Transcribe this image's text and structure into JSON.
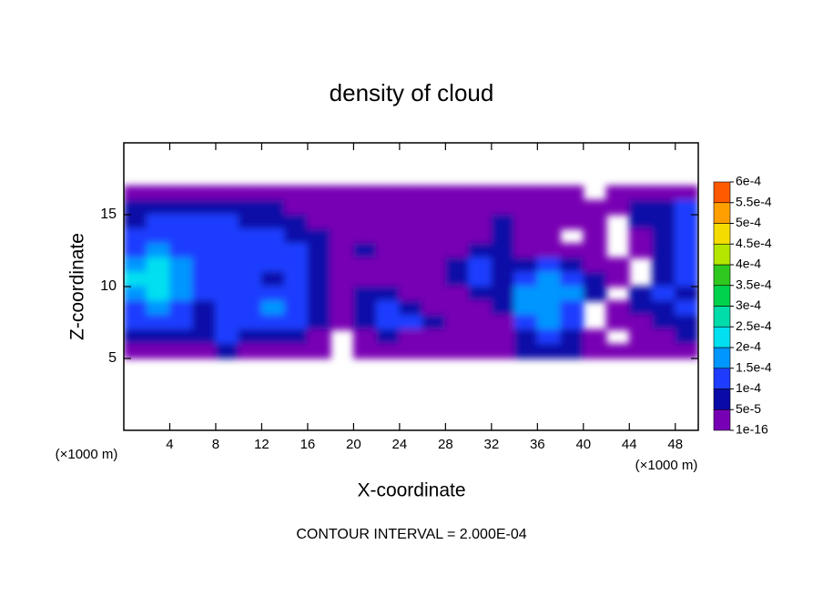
{
  "chart_data": {
    "type": "contour",
    "title": "density of cloud",
    "xlabel": "X-coordinate",
    "ylabel": "Z-coordinate",
    "x_unit_label": "(×1000 m)",
    "z_unit_label": "(×1000 m)",
    "footnote": "CONTOUR INTERVAL = 2.000E-04",
    "xlim": [
      0,
      50
    ],
    "ylim": [
      0,
      20
    ],
    "xticks": [
      4,
      8,
      12,
      16,
      20,
      24,
      28,
      32,
      36,
      40,
      44,
      48
    ],
    "yticks": [
      5,
      10,
      15
    ],
    "x": [
      1,
      3,
      5,
      7,
      9,
      11,
      13,
      15,
      17,
      19,
      21,
      23,
      25,
      27,
      29,
      31,
      33,
      35,
      37,
      39,
      41,
      43,
      45,
      47,
      49
    ],
    "y": [
      16.5,
      15.5,
      14.5,
      13.5,
      12.5,
      11.5,
      10.5,
      9.5,
      8.5,
      7.5,
      6.5,
      5.5
    ],
    "z": [
      [
        2e-05,
        2e-05,
        2e-05,
        2e-05,
        2e-05,
        2e-05,
        2e-05,
        2e-05,
        2e-05,
        2e-05,
        2e-05,
        2e-05,
        2e-05,
        2e-05,
        2e-05,
        2e-05,
        2e-05,
        2e-05,
        2e-05,
        2e-05,
        null,
        2e-05,
        2e-05,
        2e-05,
        2e-05
      ],
      [
        7e-05,
        7e-05,
        7e-05,
        7e-05,
        7e-05,
        7e-05,
        7e-05,
        2e-05,
        2e-05,
        2e-05,
        2e-05,
        2e-05,
        2e-05,
        2e-05,
        2e-05,
        2e-05,
        2e-05,
        2e-05,
        2e-05,
        2e-05,
        2e-05,
        2e-05,
        7e-05,
        7e-05,
        0.00012
      ],
      [
        7e-05,
        0.00012,
        0.00012,
        0.00012,
        0.00012,
        7e-05,
        7e-05,
        7e-05,
        2e-05,
        2e-05,
        2e-05,
        2e-05,
        2e-05,
        2e-05,
        2e-05,
        2e-05,
        7e-05,
        2e-05,
        2e-05,
        2e-05,
        2e-05,
        null,
        7e-05,
        7e-05,
        0.00012
      ],
      [
        0.00012,
        0.00012,
        0.00012,
        0.00012,
        0.00012,
        0.00012,
        0.00012,
        7e-05,
        7e-05,
        2e-05,
        2e-05,
        2e-05,
        2e-05,
        2e-05,
        2e-05,
        2e-05,
        7e-05,
        2e-05,
        2e-05,
        null,
        2e-05,
        null,
        2e-05,
        7e-05,
        0.00012
      ],
      [
        0.00012,
        0.00017,
        0.00012,
        0.00012,
        0.00012,
        0.00012,
        0.00012,
        0.00012,
        7e-05,
        2e-05,
        7e-05,
        2e-05,
        2e-05,
        2e-05,
        2e-05,
        7e-05,
        7e-05,
        2e-05,
        2e-05,
        2e-05,
        2e-05,
        null,
        2e-05,
        7e-05,
        0.00012
      ],
      [
        0.00017,
        0.00021,
        0.00017,
        0.00012,
        0.00012,
        0.00012,
        0.00012,
        0.00012,
        7e-05,
        2e-05,
        2e-05,
        2e-05,
        2e-05,
        2e-05,
        7e-05,
        0.00012,
        7e-05,
        7e-05,
        0.00012,
        7e-05,
        2e-05,
        2e-05,
        null,
        7e-05,
        0.00012
      ],
      [
        0.00021,
        0.00021,
        0.00017,
        0.00012,
        0.00012,
        0.00012,
        7e-05,
        0.00012,
        7e-05,
        2e-05,
        2e-05,
        2e-05,
        2e-05,
        2e-05,
        7e-05,
        0.00012,
        7e-05,
        0.00012,
        0.00017,
        0.00012,
        7e-05,
        2e-05,
        null,
        7e-05,
        0.00012
      ],
      [
        0.00017,
        0.00021,
        0.00017,
        0.00012,
        0.00012,
        0.00012,
        0.00012,
        0.00012,
        7e-05,
        2e-05,
        7e-05,
        7e-05,
        2e-05,
        2e-05,
        2e-05,
        7e-05,
        7e-05,
        0.00017,
        0.00017,
        0.00017,
        7e-05,
        null,
        7e-05,
        0.00012,
        7e-05
      ],
      [
        0.00012,
        0.00017,
        0.00012,
        7e-05,
        0.00012,
        0.00012,
        0.00017,
        0.00012,
        7e-05,
        2e-05,
        7e-05,
        0.00012,
        7e-05,
        2e-05,
        2e-05,
        2e-05,
        7e-05,
        0.00017,
        0.00017,
        0.00012,
        null,
        2e-05,
        7e-05,
        7e-05,
        0.00012
      ],
      [
        0.00012,
        0.00012,
        0.00012,
        7e-05,
        0.00012,
        0.00012,
        0.00012,
        0.00012,
        7e-05,
        2e-05,
        7e-05,
        0.00012,
        0.00012,
        7e-05,
        2e-05,
        2e-05,
        2e-05,
        0.00012,
        0.00017,
        0.00012,
        null,
        2e-05,
        2e-05,
        7e-05,
        7e-05
      ],
      [
        7e-05,
        7e-05,
        7e-05,
        7e-05,
        0.00012,
        7e-05,
        7e-05,
        7e-05,
        2e-05,
        null,
        2e-05,
        7e-05,
        2e-05,
        2e-05,
        2e-05,
        2e-05,
        2e-05,
        7e-05,
        0.00012,
        7e-05,
        2e-05,
        null,
        2e-05,
        2e-05,
        7e-05
      ],
      [
        2e-05,
        2e-05,
        2e-05,
        2e-05,
        7e-05,
        2e-05,
        2e-05,
        2e-05,
        2e-05,
        null,
        2e-05,
        2e-05,
        2e-05,
        2e-05,
        2e-05,
        2e-05,
        2e-05,
        7e-05,
        7e-05,
        7e-05,
        2e-05,
        2e-05,
        2e-05,
        2e-05,
        2e-05
      ]
    ],
    "levels": [
      {
        "value": 1e-16,
        "label": "1e-16"
      },
      {
        "value": 5e-05,
        "label": "5e-5"
      },
      {
        "value": 0.0001,
        "label": "1e-4"
      },
      {
        "value": 0.00015,
        "label": "1.5e-4"
      },
      {
        "value": 0.0002,
        "label": "2e-4"
      },
      {
        "value": 0.00025,
        "label": "2.5e-4"
      },
      {
        "value": 0.0003,
        "label": "3e-4"
      },
      {
        "value": 0.00035,
        "label": "3.5e-4"
      },
      {
        "value": 0.0004,
        "label": "4e-4"
      },
      {
        "value": 0.00045,
        "label": "4.5e-4"
      },
      {
        "value": 0.0005,
        "label": "5e-4"
      },
      {
        "value": 0.00055,
        "label": "5.5e-4"
      },
      {
        "value": 0.0006,
        "label": "6e-4"
      }
    ],
    "level_colors": [
      "#7800b4",
      "#0a0aa8",
      "#1e3cff",
      "#0096ff",
      "#00e0f0",
      "#00dcaa",
      "#00d24b",
      "#2fc81e",
      "#b4e600",
      "#f5dc00",
      "#ffa000",
      "#ff5a00",
      "#ff2828",
      "#ff8c8c"
    ]
  }
}
